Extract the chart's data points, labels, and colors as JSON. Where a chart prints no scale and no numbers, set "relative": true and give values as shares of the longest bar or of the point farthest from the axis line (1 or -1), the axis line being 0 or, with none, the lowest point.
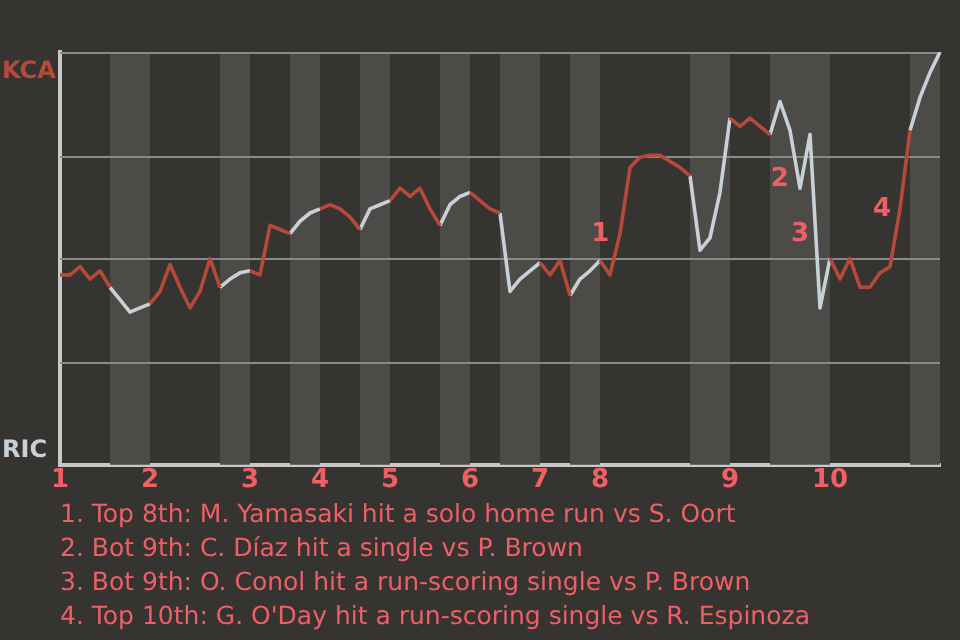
{
  "chart_data": {
    "type": "line",
    "relative": true,
    "data_labels": false,
    "categories": [
      "1",
      null,
      null,
      null,
      null,
      null,
      null,
      null,
      null,
      "2",
      null,
      null,
      null,
      null,
      null,
      null,
      null,
      null,
      null,
      "3",
      null,
      null,
      null,
      null,
      null,
      null,
      "4",
      null,
      null,
      null,
      null,
      null,
      null,
      "5",
      null,
      null,
      null,
      null,
      null,
      null,
      null,
      "6",
      null,
      null,
      null,
      null,
      null,
      null,
      "7",
      null,
      null,
      null,
      null,
      null,
      "8",
      null,
      null,
      null,
      null,
      null,
      null,
      null,
      null,
      null,
      null,
      null,
      null,
      "9",
      null,
      null,
      null,
      null,
      null,
      null,
      null,
      null,
      null,
      "10",
      null,
      null,
      null,
      null,
      null,
      null,
      null,
      null,
      null,
      null,
      null
    ],
    "legend": false,
    "marker": "none",
    "series": [
      {
        "color": "#b5493a",
        "values": [
          0.46,
          0.46,
          0.48,
          0.45,
          0.47,
          0.43,
          null,
          null,
          null,
          0.39,
          0.42,
          0.485,
          0.43,
          0.38,
          0.42,
          0.5,
          0.43,
          null,
          null,
          0.47,
          0.46,
          0.58,
          0.57,
          0.56,
          null,
          null,
          0.62,
          0.63,
          0.62,
          0.6,
          0.57,
          null,
          null,
          0.64,
          0.67,
          0.65,
          0.67,
          0.62,
          0.58,
          null,
          null,
          0.66,
          0.64,
          0.62,
          0.61,
          null,
          null,
          null,
          0.49,
          0.46,
          0.495,
          0.41,
          null,
          null,
          0.495,
          0.46,
          0.56,
          0.72,
          0.745,
          0.75,
          0.75,
          0.735,
          0.72,
          0.7,
          null,
          null,
          null,
          0.84,
          0.82,
          0.84,
          0.82,
          0.8,
          null,
          null,
          null,
          null,
          null,
          0.5,
          0.45,
          0.5,
          0.43,
          0.43,
          0.465,
          0.48,
          0.62,
          0.81,
          null,
          null,
          null
        ],
        "name": null
      },
      {
        "color": "#c8d0d8",
        "values": [
          null,
          null,
          null,
          null,
          null,
          0.43,
          0.4,
          0.37,
          0.38,
          0.39,
          null,
          null,
          null,
          null,
          null,
          null,
          0.43,
          0.45,
          0.465,
          0.47,
          null,
          null,
          null,
          0.56,
          0.59,
          0.61,
          0.62,
          null,
          null,
          null,
          0.57,
          0.62,
          0.63,
          0.64,
          null,
          null,
          null,
          null,
          0.58,
          0.63,
          0.65,
          0.66,
          null,
          null,
          0.61,
          0.42,
          0.45,
          0.47,
          0.49,
          null,
          null,
          0.41,
          0.45,
          0.47,
          0.495,
          null,
          null,
          null,
          null,
          null,
          null,
          null,
          null,
          0.7,
          0.52,
          0.55,
          0.66,
          0.84,
          null,
          null,
          null,
          0.8,
          0.88,
          0.81,
          0.67,
          0.8,
          0.38,
          0.5,
          null,
          null,
          null,
          null,
          null,
          null,
          null,
          0.81,
          0.89,
          0.95,
          1.0
        ],
        "name": null
      }
    ],
    "ref_lines": [
      {
        "axis": "y",
        "value": 0.25,
        "color": "#8a8886"
      },
      {
        "axis": "y",
        "value": 0.5,
        "color": "#8a8886"
      },
      {
        "axis": "y",
        "value": 0.75,
        "color": "#8a8886"
      },
      {
        "axis": "y",
        "value": 1.0,
        "color": "#8a8886"
      }
    ],
    "annotations": [
      "KCA",
      "RIC",
      "1",
      "2",
      "3",
      "4",
      "1. Top 8th: M. Yamasaki hit a solo home run vs S. Oort",
      "2. Bot 9th: C. Díaz hit a single vs P. Brown",
      "3. Bot 9th: O. Conol hit a run-scoring single vs P. Brown",
      "4. Top 10th: G. O'Day hit a run-scoring single vs R. Espinoza"
    ]
  }
}
